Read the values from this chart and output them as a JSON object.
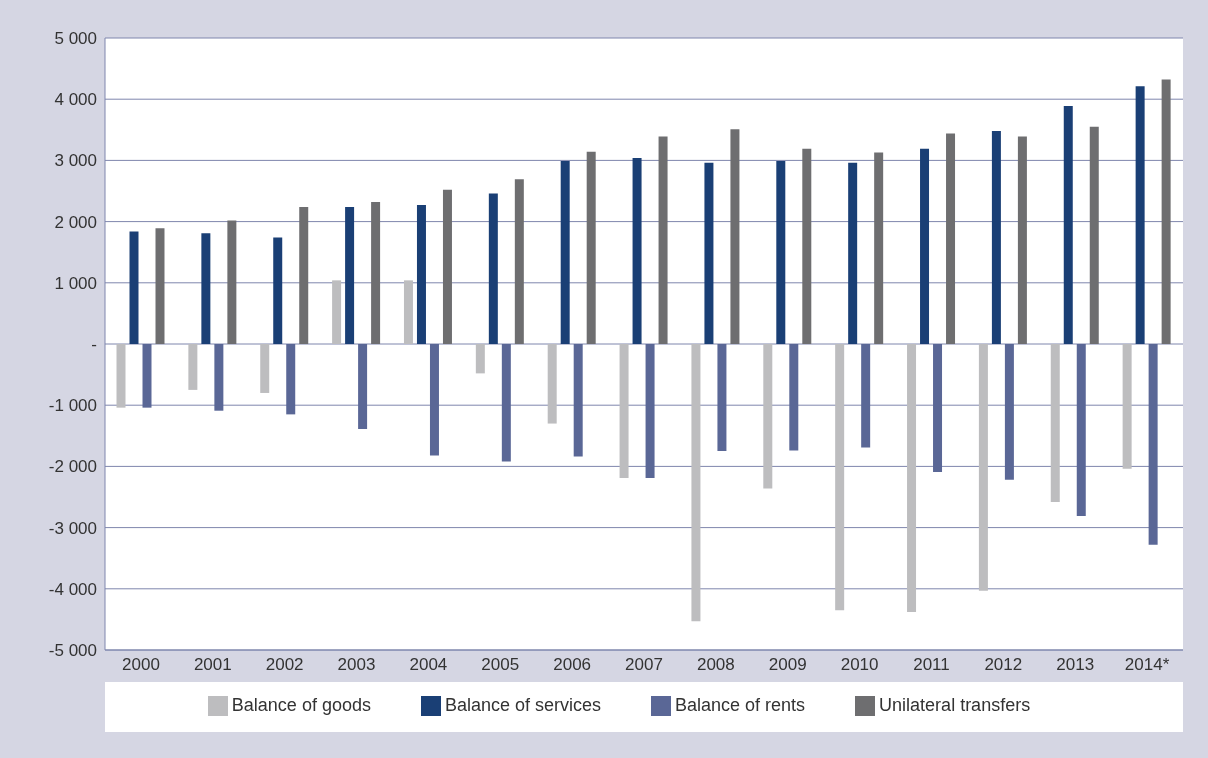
{
  "chart_data": {
    "type": "bar",
    "categories": [
      "2000",
      "2001",
      "2002",
      "2003",
      "2004",
      "2005",
      "2006",
      "2007",
      "2008",
      "2009",
      "2010",
      "2011",
      "2012",
      "2013",
      "2014*"
    ],
    "series": [
      {
        "name": "Balance of goods",
        "color": "#bdbdbf",
        "values": [
          -1040,
          -750,
          -800,
          1040,
          1040,
          -480,
          -1300,
          -2190,
          -4530,
          -2360,
          -4350,
          -4380,
          -4030,
          -2580,
          -2040
        ]
      },
      {
        "name": "Balance of services",
        "color": "#1a3f75",
        "values": [
          1840,
          1810,
          1740,
          2240,
          2270,
          2460,
          2990,
          3040,
          2960,
          2990,
          2960,
          3190,
          3480,
          3890,
          4210
        ]
      },
      {
        "name": "Balance of rents",
        "color": "#5a6796",
        "values": [
          -1040,
          -1090,
          -1150,
          -1390,
          -1820,
          -1920,
          -1840,
          -2190,
          -1750,
          -1740,
          -1690,
          -2090,
          -2220,
          -2810,
          -3280
        ]
      },
      {
        "name": "Unilateral transfers",
        "color": "#6e6e70",
        "values": [
          1890,
          2020,
          2240,
          2320,
          2520,
          2690,
          3140,
          3390,
          3510,
          3190,
          3130,
          3440,
          3390,
          3550,
          4320
        ]
      }
    ],
    "ylim": [
      -5000,
      5000
    ],
    "yticks": [
      {
        "value": -5000,
        "label": "-5 000"
      },
      {
        "value": -4000,
        "label": "-4 000"
      },
      {
        "value": -3000,
        "label": "-3 000"
      },
      {
        "value": -2000,
        "label": "-2 000"
      },
      {
        "value": -1000,
        "label": "-1 000"
      },
      {
        "value": 0,
        "label": "-"
      },
      {
        "value": 1000,
        "label": "1 000"
      },
      {
        "value": 2000,
        "label": "2 000"
      },
      {
        "value": 3000,
        "label": "3 000"
      },
      {
        "value": 4000,
        "label": "4 000"
      },
      {
        "value": 5000,
        "label": "5 000"
      }
    ],
    "grid": "y",
    "legend": "bottom"
  }
}
